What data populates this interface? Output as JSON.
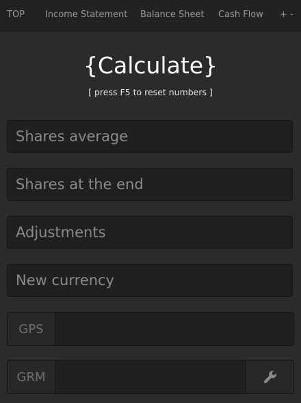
{
  "nav": {
    "items": [
      {
        "label": "TOP"
      },
      {
        "label": "Income Statement"
      },
      {
        "label": "Balance Sheet"
      },
      {
        "label": "Cash Flow"
      },
      {
        "label": "+ -"
      }
    ]
  },
  "header": {
    "title": "{Calculate}",
    "subtitle": "[ press F5 to reset numbers ]"
  },
  "form": {
    "shares_average": {
      "placeholder": "Shares average",
      "value": ""
    },
    "shares_end": {
      "placeholder": "Shares at the end",
      "value": ""
    },
    "adjustments": {
      "placeholder": "Adjustments",
      "value": ""
    },
    "new_currency": {
      "placeholder": "New currency",
      "value": ""
    },
    "gps": {
      "label": "GPS",
      "value": ""
    },
    "grm": {
      "label": "GRM",
      "value": "",
      "tool_icon": "wrench-icon"
    }
  },
  "colors": {
    "background": "#2b2b2b",
    "navbar": "#222222",
    "input_background": "#202020",
    "addon_background": "#282828",
    "text_muted": "#8a8a8a",
    "title": "#ffffff"
  }
}
